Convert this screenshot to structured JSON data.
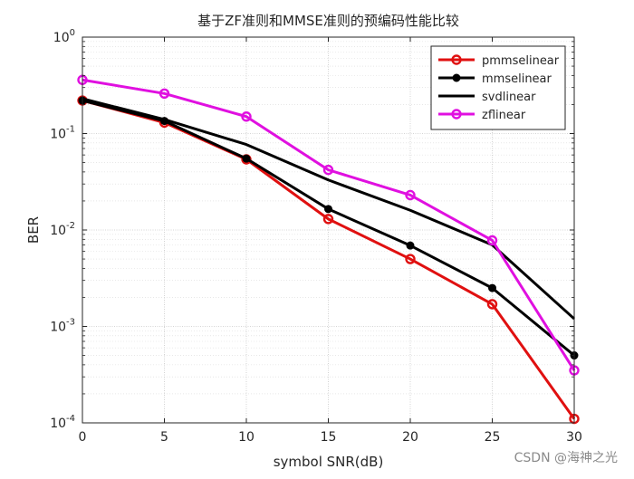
{
  "chart_data": {
    "type": "line",
    "title": "基于ZF准则和MMSE准则的预编码性能比较",
    "xlabel": "symbol SNR(dB)",
    "ylabel": "BER",
    "yscale": "log",
    "xlim": [
      0,
      30
    ],
    "ylim": [
      0.0001,
      1
    ],
    "xticks": [
      0,
      5,
      10,
      15,
      20,
      25,
      30
    ],
    "yticks": [
      {
        "value": 1,
        "base": "10",
        "exp": "0"
      },
      {
        "value": 0.1,
        "base": "10",
        "exp": "-1"
      },
      {
        "value": 0.01,
        "base": "10",
        "exp": "-2"
      },
      {
        "value": 0.001,
        "base": "10",
        "exp": "-3"
      },
      {
        "value": 0.0001,
        "base": "10",
        "exp": "-4"
      }
    ],
    "grid": true,
    "legend_position": "top-right",
    "x": [
      0,
      5,
      10,
      15,
      20,
      25,
      30
    ],
    "series": [
      {
        "name": "pmmselinear",
        "color": "#e01010",
        "marker": "circle-open",
        "values": [
          0.22,
          0.13,
          0.054,
          0.013,
          0.005,
          0.0017,
          0.00011
        ]
      },
      {
        "name": "mmselinear",
        "color": "#000000",
        "marker": "circle-filled",
        "values": [
          0.22,
          0.135,
          0.055,
          0.0165,
          0.0069,
          0.0025,
          0.0005
        ]
      },
      {
        "name": "svdlinear",
        "color": "#000000",
        "marker": "none",
        "values": [
          0.23,
          0.14,
          0.077,
          0.033,
          0.016,
          0.007,
          0.0012
        ]
      },
      {
        "name": "zflinear",
        "color": "#e010e0",
        "marker": "circle-open",
        "values": [
          0.36,
          0.26,
          0.15,
          0.042,
          0.023,
          0.0078,
          0.00035
        ]
      }
    ]
  },
  "watermark": "CSDN @海神之光"
}
